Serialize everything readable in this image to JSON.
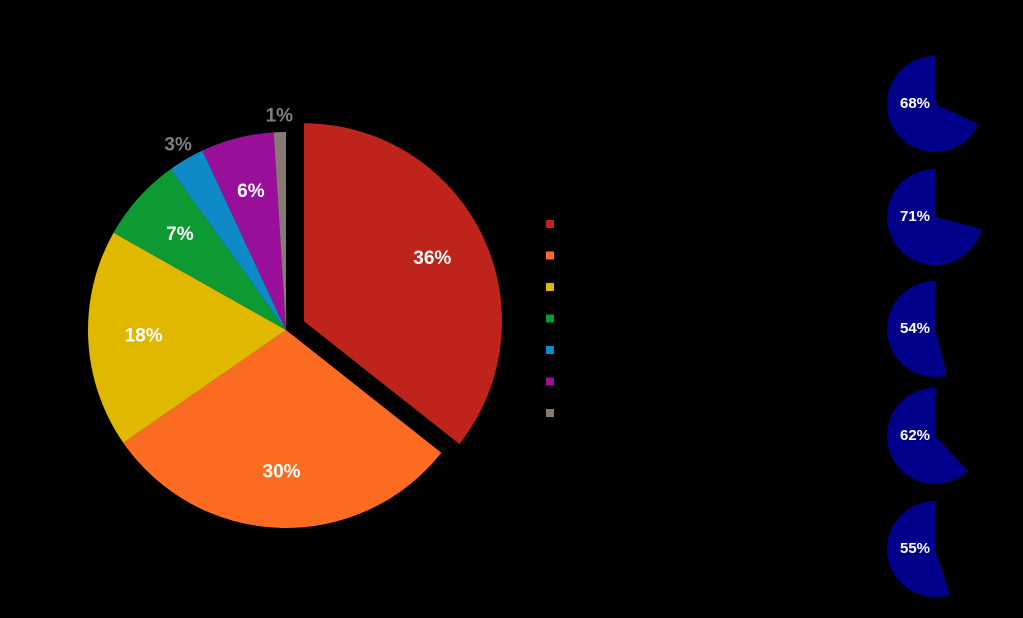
{
  "chart_data": [
    {
      "type": "pie",
      "values": [
        36,
        30,
        18,
        7,
        3,
        6,
        1
      ],
      "value_labels": [
        "36%",
        "30%",
        "18%",
        "7%",
        "3%",
        "6%",
        "1%"
      ],
      "colors": [
        "#be231c",
        "#fb6b22",
        "#e0b800",
        "#0e9a33",
        "#0e8ac8",
        "#990f99",
        "#857b73"
      ],
      "exploded": [
        true,
        false,
        false,
        false,
        false,
        false,
        false
      ]
    },
    {
      "type": "pie",
      "values": [
        68
      ],
      "value_labels": [
        "68%"
      ],
      "color": "#00008b",
      "counterclock": true
    },
    {
      "type": "pie",
      "values": [
        71
      ],
      "value_labels": [
        "71%"
      ],
      "color": "#00008b",
      "counterclock": true
    },
    {
      "type": "pie",
      "values": [
        54
      ],
      "value_labels": [
        "54%"
      ],
      "color": "#00008b",
      "counterclock": true
    },
    {
      "type": "pie",
      "values": [
        62
      ],
      "value_labels": [
        "62%"
      ],
      "color": "#00008b",
      "counterclock": true
    },
    {
      "type": "pie",
      "values": [
        55
      ],
      "value_labels": [
        "55%"
      ],
      "color": "#00008b",
      "counterclock": true
    }
  ]
}
